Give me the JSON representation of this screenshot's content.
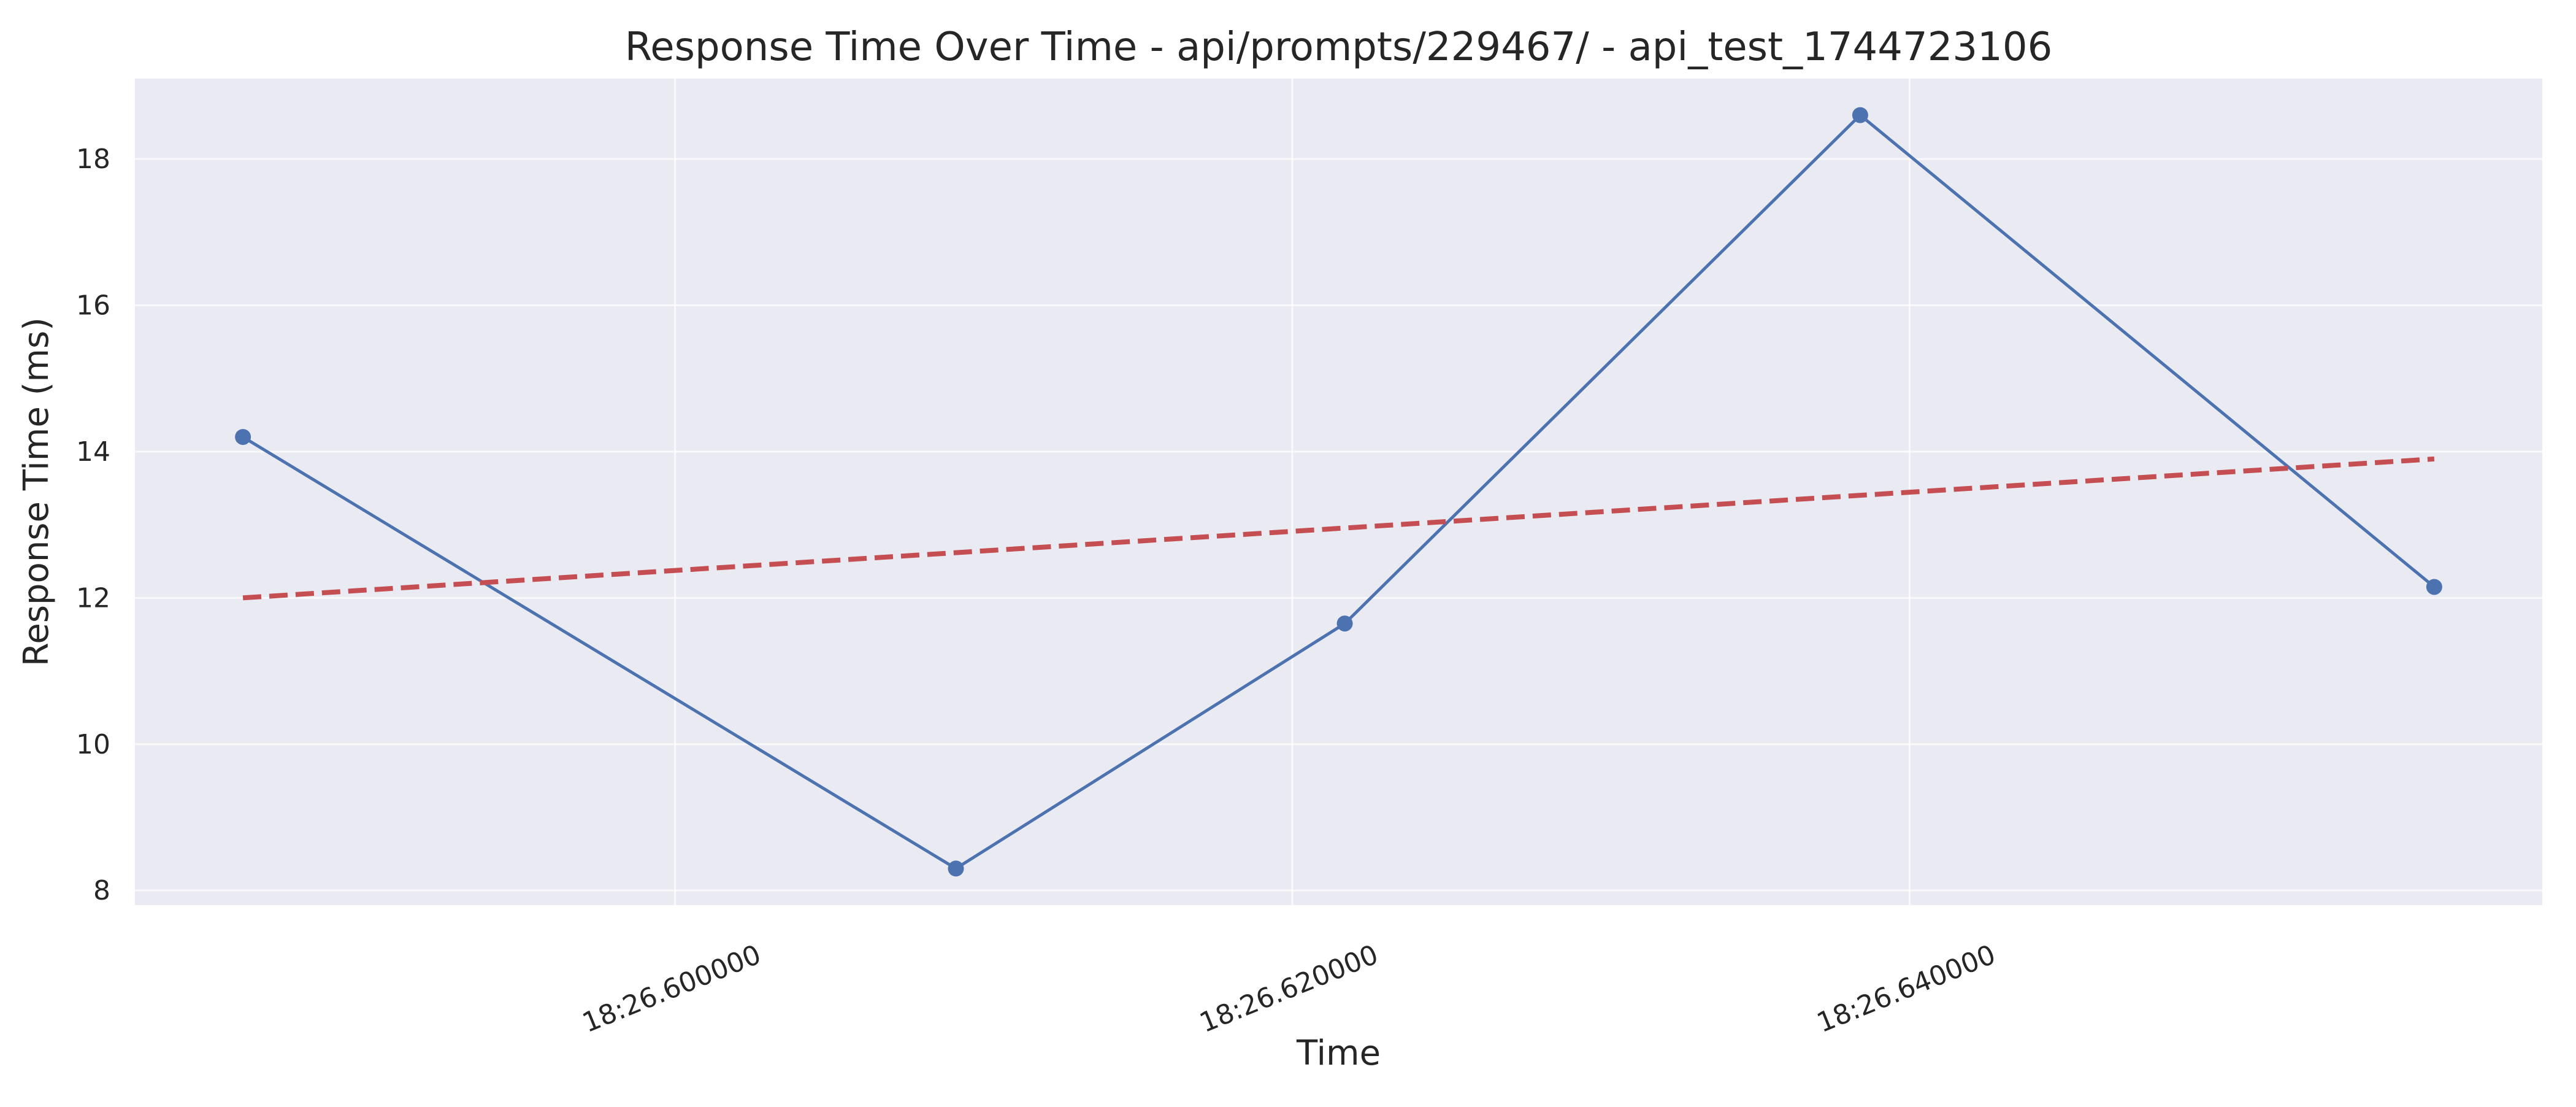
{
  "chart_data": {
    "type": "line",
    "title": "Response Time Over Time - api/prompts/229467/ - api_test_1744723106",
    "xlabel": "Time",
    "ylabel": "Response Time (ms)",
    "x_unit": "seconds within 18:26",
    "x_tick_values": [
      26.6,
      26.62,
      26.64
    ],
    "x_tick_labels": [
      "18:26.600000",
      "18:26.620000",
      "18:26.640000"
    ],
    "xlim": [
      26.5825,
      26.6605
    ],
    "ylim": [
      7.8,
      19.1
    ],
    "y_ticks": [
      8,
      10,
      12,
      14,
      16,
      18
    ],
    "grid": true,
    "background": "#eaeaf2",
    "grid_color": "#ffffff",
    "series": [
      {
        "style": "line-with-markers",
        "color": "#4c72b0",
        "points": [
          {
            "x": 26.586,
            "y": 14.2
          },
          {
            "x": 26.6091,
            "y": 8.3
          },
          {
            "x": 26.6217,
            "y": 11.65
          },
          {
            "x": 26.6384,
            "y": 18.6
          },
          {
            "x": 26.657,
            "y": 12.15
          }
        ]
      },
      {
        "style": "dashed",
        "color": "#c44e52",
        "points": [
          {
            "x": 26.586,
            "y": 12.0
          },
          {
            "x": 26.657,
            "y": 13.9
          }
        ]
      }
    ]
  }
}
